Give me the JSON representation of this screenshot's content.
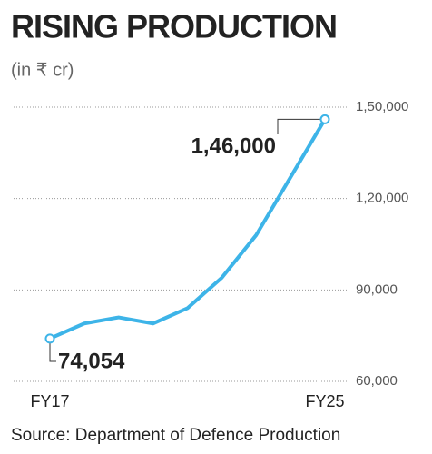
{
  "chart_data": {
    "type": "line",
    "title": "RISING PRODUCTION",
    "subtitle": "(in ₹ cr)",
    "source": "Source: Department of Defence Production",
    "categories": [
      "FY17",
      null,
      null,
      null,
      null,
      null,
      null,
      null,
      "FY25"
    ],
    "values": [
      74054,
      79000,
      81000,
      79000,
      84000,
      94000,
      108000,
      127000,
      146000
    ],
    "value_labels": [
      "74,054",
      null,
      null,
      null,
      null,
      null,
      null,
      null,
      "1,46,000"
    ],
    "color": "#3db4e8",
    "ylim": [
      60000,
      150000
    ],
    "yticks": [
      {
        "value": 60000,
        "label": "60,000"
      },
      {
        "value": 90000,
        "label": "90,000"
      },
      {
        "value": 120000,
        "label": "1,20,000"
      },
      {
        "value": 150000,
        "label": "1,50,000"
      }
    ],
    "grid": true
  }
}
